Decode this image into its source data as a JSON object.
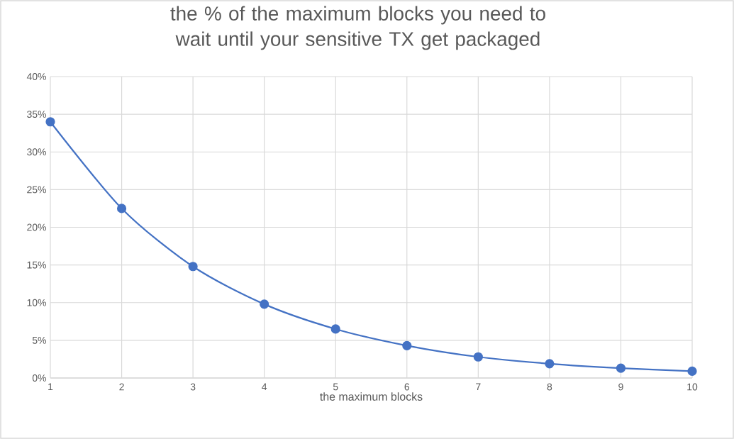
{
  "chart_data": {
    "type": "line",
    "title": "the % of the maximum blocks you need to wait until your sensitive TX get packaged",
    "xlabel": "the maximum blocks",
    "x": [
      1,
      2,
      3,
      4,
      5,
      6,
      7,
      8,
      9,
      10
    ],
    "series": [
      {
        "color": "#4472c4",
        "values": [
          34,
          22.5,
          14.8,
          9.8,
          6.5,
          4.3,
          2.8,
          1.9,
          1.3,
          0.9
        ]
      }
    ],
    "xlim": [
      1,
      10
    ],
    "xticks": [
      1,
      2,
      3,
      4,
      5,
      6,
      7,
      8,
      9,
      10
    ],
    "ylim": [
      0,
      40
    ],
    "yticks": [
      {
        "value": 0,
        "label": "0%"
      },
      {
        "value": 5,
        "label": "5%"
      },
      {
        "value": 10,
        "label": "10%"
      },
      {
        "value": 15,
        "label": "15%"
      },
      {
        "value": 20,
        "label": "20%"
      },
      {
        "value": 25,
        "label": "25%"
      },
      {
        "value": 30,
        "label": "30%"
      },
      {
        "value": 35,
        "label": "35%"
      },
      {
        "value": 40,
        "label": "40%"
      }
    ],
    "grid": true,
    "marker": "circle",
    "line_style": "solid"
  }
}
